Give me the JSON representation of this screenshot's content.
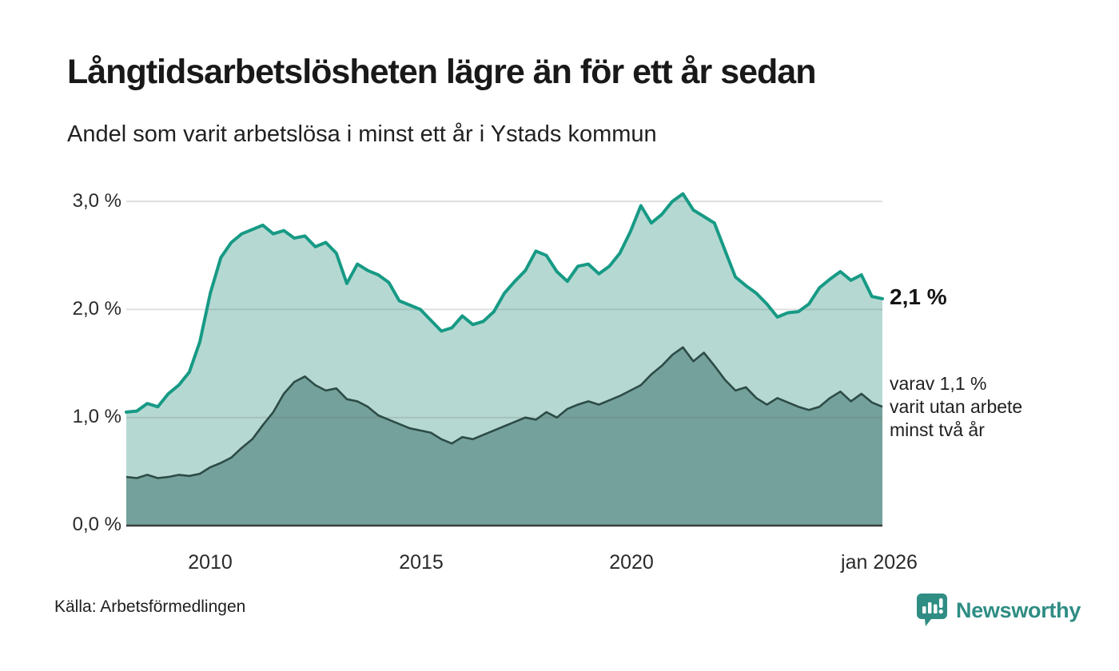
{
  "header": {
    "title": "Långtidsarbetslösheten lägre än för ett år sedan",
    "subtitle": "Andel som varit arbetslösa i minst ett år i Ystads kommun"
  },
  "chart": {
    "y_ticks": [
      "3,0 %",
      "2,0 %",
      "1,0 %",
      "0,0 %"
    ],
    "x_ticks": [
      "2010",
      "2015",
      "2020",
      "jan 2026"
    ],
    "annotation_value": "2,1 %",
    "annotation_note": "varav 1,1 %\nvarit utan arbete\nminst två år"
  },
  "footer": {
    "source": "Källa: Arbetsförmedlingen",
    "brand": "Newsworthy"
  },
  "chart_data": {
    "type": "area",
    "title": "Långtidsarbetslösheten lägre än för ett år sedan",
    "subtitle": "Andel som varit arbetslösa i minst ett år i Ystads kommun",
    "source": "Källa: Arbetsförmedlingen",
    "unit": "%",
    "ylim": [
      0,
      3.2
    ],
    "y_tick_values": [
      0.0,
      1.0,
      2.0,
      3.0
    ],
    "x_tick_values": [
      2010,
      2015,
      2020,
      2026
    ],
    "xlim": [
      2008,
      2026
    ],
    "grid": "horizontal",
    "legend_position": "right-annotations",
    "x": [
      2008,
      2008.25,
      2008.5,
      2008.75,
      2009,
      2009.25,
      2009.5,
      2009.75,
      2010,
      2010.25,
      2010.5,
      2010.75,
      2011,
      2011.25,
      2011.5,
      2011.75,
      2012,
      2012.25,
      2012.5,
      2012.75,
      2013,
      2013.25,
      2013.5,
      2013.75,
      2014,
      2014.25,
      2014.5,
      2014.75,
      2015,
      2015.25,
      2015.5,
      2015.75,
      2016,
      2016.25,
      2016.5,
      2016.75,
      2017,
      2017.25,
      2017.5,
      2017.75,
      2018,
      2018.25,
      2018.5,
      2018.75,
      2019,
      2019.25,
      2019.5,
      2019.75,
      2020,
      2020.25,
      2020.5,
      2020.75,
      2021,
      2021.25,
      2021.5,
      2021.75,
      2022,
      2022.25,
      2022.5,
      2022.75,
      2023,
      2023.25,
      2023.5,
      2023.75,
      2024,
      2024.25,
      2024.5,
      2024.75,
      2025,
      2025.25,
      2025.5,
      2025.75,
      2026
    ],
    "series": [
      {
        "name": "Andel arbetslösa minst ett år",
        "end_value": 2.1,
        "end_label": "2,1 %",
        "color": "#179a85",
        "fill": "#b5d9d2",
        "values": [
          1.05,
          1.06,
          1.13,
          1.1,
          1.22,
          1.3,
          1.42,
          1.7,
          2.15,
          2.48,
          2.62,
          2.7,
          2.74,
          2.78,
          2.7,
          2.73,
          2.66,
          2.68,
          2.58,
          2.62,
          2.52,
          2.24,
          2.42,
          2.36,
          2.32,
          2.25,
          2.08,
          2.04,
          2.0,
          1.9,
          1.8,
          1.83,
          1.94,
          1.86,
          1.89,
          1.98,
          2.15,
          2.26,
          2.36,
          2.54,
          2.5,
          2.35,
          2.26,
          2.4,
          2.42,
          2.33,
          2.4,
          2.52,
          2.72,
          2.96,
          2.8,
          2.88,
          3.0,
          3.07,
          2.92,
          2.86,
          2.8,
          2.55,
          2.3,
          2.22,
          2.15,
          2.05,
          1.93,
          1.97,
          1.98,
          2.05,
          2.2,
          2.28,
          2.35,
          2.27,
          2.32,
          2.12,
          2.1
        ]
      },
      {
        "name": "varav utan arbete minst två år",
        "end_value": 1.1,
        "end_label": "varav 1,1 % varit utan arbete minst två år",
        "color": "#2d4b47",
        "fill": "#74a19b",
        "values": [
          0.45,
          0.44,
          0.47,
          0.44,
          0.45,
          0.47,
          0.46,
          0.48,
          0.54,
          0.58,
          0.63,
          0.72,
          0.8,
          0.93,
          1.05,
          1.22,
          1.33,
          1.38,
          1.3,
          1.25,
          1.27,
          1.17,
          1.15,
          1.1,
          1.02,
          0.98,
          0.94,
          0.9,
          0.88,
          0.86,
          0.8,
          0.76,
          0.82,
          0.8,
          0.84,
          0.88,
          0.92,
          0.96,
          1.0,
          0.98,
          1.05,
          1.0,
          1.08,
          1.12,
          1.15,
          1.12,
          1.16,
          1.2,
          1.25,
          1.3,
          1.4,
          1.48,
          1.58,
          1.65,
          1.52,
          1.6,
          1.48,
          1.35,
          1.25,
          1.28,
          1.18,
          1.12,
          1.18,
          1.14,
          1.1,
          1.07,
          1.1,
          1.18,
          1.24,
          1.15,
          1.22,
          1.14,
          1.1
        ]
      }
    ],
    "colors": {
      "line_primary": "#179a85",
      "fill_primary": "#b5d9d2",
      "line_secondary": "#2d4b47",
      "fill_secondary": "#74a19b",
      "axis": "#3c3c3c",
      "gridline": "#dedede",
      "brand_teal": "#2f8d84"
    }
  }
}
